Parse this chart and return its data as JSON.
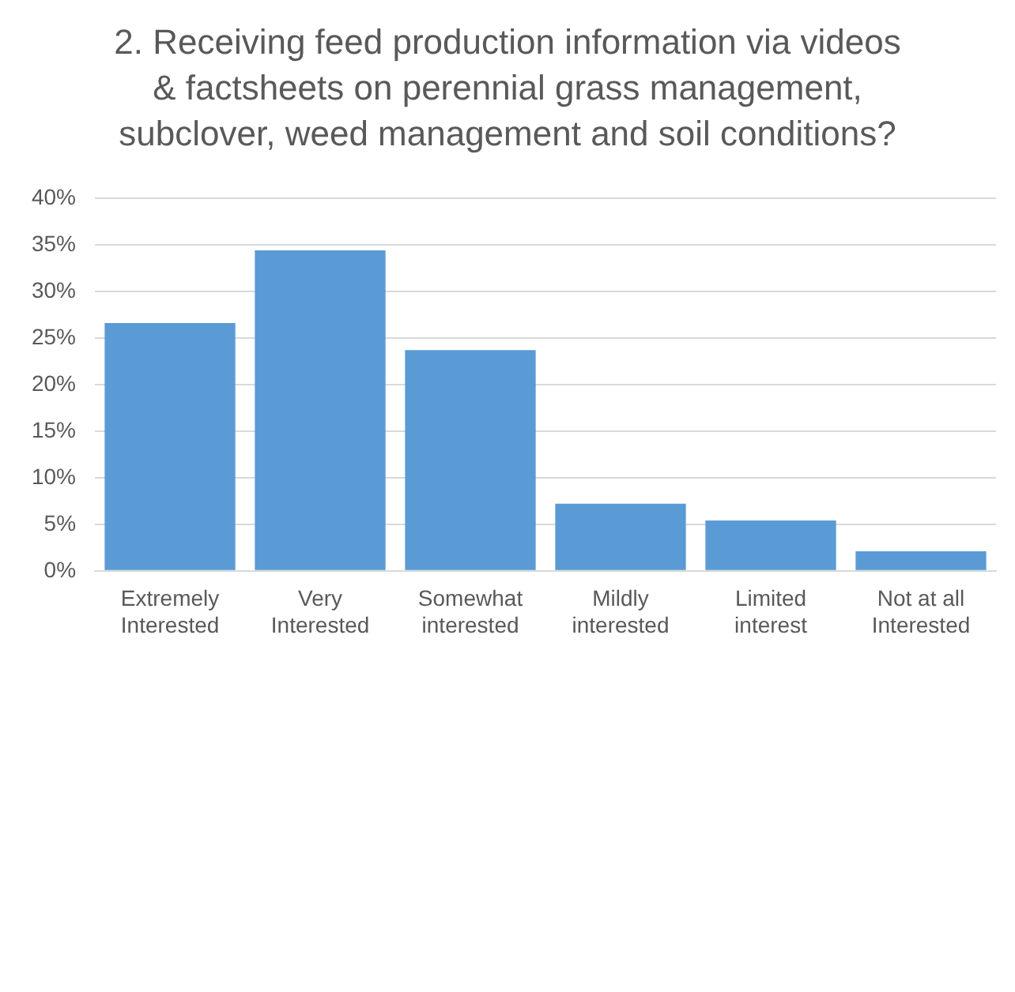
{
  "chart_data": {
    "type": "bar",
    "title": "2. Receiving feed production information via videos & factsheets on perennial grass management, subclover, weed management and soil conditions?",
    "categories": [
      "Extremely\nInterested",
      "Very\nInterested",
      "Somewhat\ninterested",
      "Mildly\ninterested",
      "Limited\ninterest",
      "Not at all\nInterested"
    ],
    "values": [
      26.6,
      34.4,
      23.7,
      7.2,
      5.4,
      2.1
    ],
    "color": "#5b9bd5",
    "ylim": [
      0,
      40
    ],
    "yticks": [
      {
        "value": 0,
        "label": "0%"
      },
      {
        "value": 5,
        "label": "5%"
      },
      {
        "value": 10,
        "label": "10%"
      },
      {
        "value": 15,
        "label": "15%"
      },
      {
        "value": 20,
        "label": "20%"
      },
      {
        "value": 25,
        "label": "25%"
      },
      {
        "value": 30,
        "label": "30%"
      },
      {
        "value": 35,
        "label": "35%"
      },
      {
        "value": 40,
        "label": "40%"
      }
    ],
    "grid": "y"
  }
}
